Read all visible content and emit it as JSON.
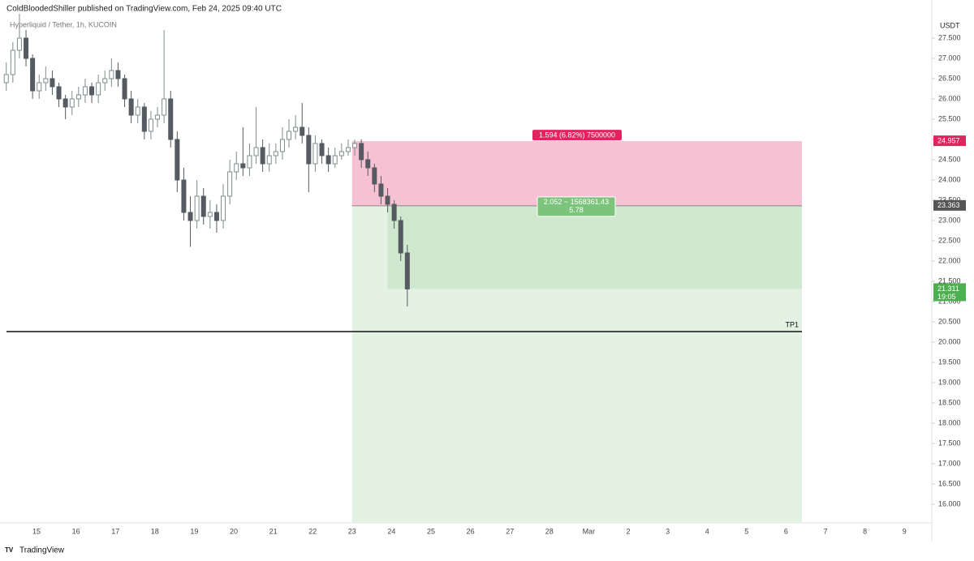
{
  "chart_data": {
    "type": "candlestick",
    "header": "ColdBloodedShiller published on TradingView.com, Feb 24, 2025 09:40 UTC",
    "title": "Hyperliquid / Tether, 1h, KUCOIN",
    "y_unit": "USDT",
    "brand": "TradingView",
    "up_color": "#7f8c8d",
    "down_color": "#555b60",
    "candles": [
      [
        26.4,
        26.9,
        26.2,
        26.6
      ],
      [
        26.6,
        27.4,
        26.4,
        27.2
      ],
      [
        27.2,
        28.1,
        27.0,
        27.5
      ],
      [
        27.5,
        27.7,
        26.8,
        27.0
      ],
      [
        27.0,
        27.1,
        26.0,
        26.2
      ],
      [
        26.2,
        26.6,
        26.0,
        26.4
      ],
      [
        26.4,
        26.8,
        26.2,
        26.5
      ],
      [
        26.5,
        26.7,
        26.1,
        26.3
      ],
      [
        26.3,
        26.4,
        25.8,
        26.0
      ],
      [
        26.0,
        26.1,
        25.5,
        25.8
      ],
      [
        25.8,
        26.2,
        25.6,
        26.0
      ],
      [
        26.0,
        26.3,
        25.8,
        26.1
      ],
      [
        26.1,
        26.5,
        25.9,
        26.3
      ],
      [
        26.3,
        26.4,
        25.9,
        26.1
      ],
      [
        26.1,
        26.6,
        25.9,
        26.4
      ],
      [
        26.4,
        26.7,
        26.2,
        26.5
      ],
      [
        26.5,
        27.0,
        26.3,
        26.7
      ],
      [
        26.7,
        26.9,
        26.3,
        26.5
      ],
      [
        26.5,
        26.6,
        25.8,
        26.0
      ],
      [
        26.0,
        26.2,
        25.4,
        25.6
      ],
      [
        25.6,
        26.0,
        25.4,
        25.8
      ],
      [
        25.8,
        25.9,
        25.0,
        25.2
      ],
      [
        25.2,
        25.7,
        25.0,
        25.5
      ],
      [
        25.5,
        25.8,
        25.3,
        25.6
      ],
      [
        25.6,
        27.7,
        25.4,
        26.0
      ],
      [
        26.0,
        26.2,
        24.8,
        25.0
      ],
      [
        25.0,
        25.2,
        23.7,
        24.0
      ],
      [
        24.0,
        24.3,
        23.0,
        23.2
      ],
      [
        23.2,
        23.6,
        22.35,
        23.0
      ],
      [
        23.0,
        24.0,
        22.8,
        23.6
      ],
      [
        23.6,
        23.8,
        22.9,
        23.1
      ],
      [
        23.1,
        23.5,
        22.8,
        23.2
      ],
      [
        23.2,
        23.4,
        22.7,
        23.0
      ],
      [
        23.0,
        23.9,
        22.8,
        23.6
      ],
      [
        23.6,
        24.5,
        23.4,
        24.2
      ],
      [
        24.2,
        24.7,
        24.0,
        24.4
      ],
      [
        24.4,
        25.3,
        24.1,
        24.3
      ],
      [
        24.3,
        24.9,
        24.1,
        24.6
      ],
      [
        24.6,
        25.8,
        24.4,
        24.8
      ],
      [
        24.8,
        25.0,
        24.2,
        24.4
      ],
      [
        24.4,
        24.9,
        24.2,
        24.6
      ],
      [
        24.6,
        24.9,
        24.4,
        24.7
      ],
      [
        24.7,
        25.3,
        24.5,
        25.0
      ],
      [
        25.0,
        25.5,
        24.8,
        25.2
      ],
      [
        25.2,
        25.6,
        25.0,
        25.3
      ],
      [
        25.3,
        25.9,
        24.9,
        25.1
      ],
      [
        25.1,
        25.3,
        23.7,
        24.4
      ],
      [
        24.4,
        25.1,
        24.2,
        24.9
      ],
      [
        24.9,
        25.0,
        24.4,
        24.6
      ],
      [
        24.6,
        24.8,
        24.2,
        24.4
      ],
      [
        24.4,
        24.8,
        24.3,
        24.6
      ],
      [
        24.6,
        24.9,
        24.5,
        24.7
      ],
      [
        24.7,
        25.0,
        24.6,
        24.8
      ],
      [
        24.8,
        25.0,
        24.6,
        24.9
      ],
      [
        24.9,
        25.0,
        24.3,
        24.5
      ],
      [
        24.5,
        24.7,
        24.1,
        24.3
      ],
      [
        24.3,
        24.4,
        23.7,
        23.9
      ],
      [
        23.9,
        24.1,
        23.4,
        23.6
      ],
      [
        23.6,
        23.8,
        23.2,
        23.4
      ],
      [
        23.4,
        23.5,
        22.8,
        23.0
      ],
      [
        23.0,
        23.1,
        22.0,
        22.2
      ],
      [
        22.2,
        22.4,
        20.88,
        21.311
      ]
    ],
    "xticks": [
      "15",
      "16",
      "17",
      "18",
      "19",
      "20",
      "21",
      "22",
      "23",
      "24",
      "25",
      "26",
      "27",
      "28",
      "Mar",
      "2",
      "3",
      "4",
      "5",
      "6",
      "7",
      "8",
      "9"
    ],
    "ylim": [
      15.54,
      28.44
    ],
    "yticks": [
      {
        "value": 16,
        "label": "16.000"
      },
      {
        "value": 16.5,
        "label": "16.500"
      },
      {
        "value": 17,
        "label": "17.000"
      },
      {
        "value": 17.5,
        "label": "17.500"
      },
      {
        "value": 18,
        "label": "18.000"
      },
      {
        "value": 18.5,
        "label": "18.500"
      },
      {
        "value": 19,
        "label": "19.000"
      },
      {
        "value": 19.5,
        "label": "19.500"
      },
      {
        "value": 20,
        "label": "20.000"
      },
      {
        "value": 20.5,
        "label": "20.500"
      },
      {
        "value": 21,
        "label": "21.000"
      },
      {
        "value": 21.5,
        "label": "21.500"
      },
      {
        "value": 22,
        "label": "22.000"
      },
      {
        "value": 22.5,
        "label": "22.500"
      },
      {
        "value": 23,
        "label": "23.000"
      },
      {
        "value": 23.5,
        "label": "23.500"
      },
      {
        "value": 24,
        "label": "24.000"
      },
      {
        "value": 24.5,
        "label": "24.500"
      },
      {
        "value": 25,
        "label": "25.000"
      },
      {
        "value": 25.5,
        "label": "25.500"
      },
      {
        "value": 26,
        "label": "26.000"
      },
      {
        "value": 26.5,
        "label": "26.500"
      },
      {
        "value": 27,
        "label": "27.000"
      },
      {
        "value": 27.5,
        "label": "27.500"
      }
    ],
    "position": {
      "stop": 24.957,
      "entry": 23.363,
      "target": 15.54,
      "risk_label": "1.594 (6.82%) 7500000",
      "reward_label": "2.052 ~ 1568361.43",
      "ratio_label": "5.78",
      "stop_color": "#f6c1d2",
      "target_color": "#e3f2e2",
      "open_color": "#cfe8cf"
    },
    "tp_line": {
      "label": "TP1",
      "value": 20.26
    },
    "countdown": "19:05"
  }
}
